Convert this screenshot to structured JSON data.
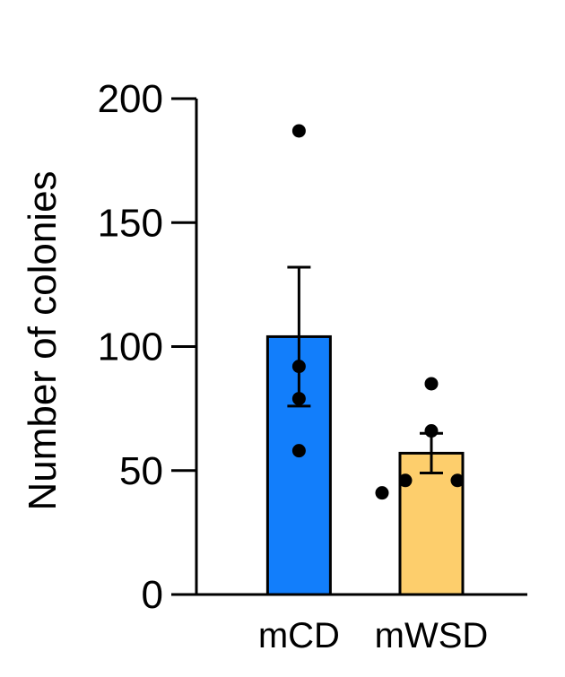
{
  "chart_data": {
    "type": "bar",
    "title": "",
    "xlabel": "",
    "ylabel": "Number of colonies",
    "ylim": [
      0,
      200
    ],
    "yticks": [
      0,
      50,
      100,
      150,
      200
    ],
    "categories": [
      "mCD",
      "mWSD"
    ],
    "series": [
      {
        "values": [
          104,
          57
        ],
        "error_low": [
          76,
          49
        ],
        "error_high": [
          132,
          65
        ],
        "colors": [
          "#127EFB",
          "#FDCE6C"
        ],
        "points": [
          [
            187,
            92,
            79,
            58
          ],
          [
            85,
            66,
            46,
            46,
            41
          ]
        ]
      }
    ],
    "grid": false,
    "legend": "none"
  }
}
